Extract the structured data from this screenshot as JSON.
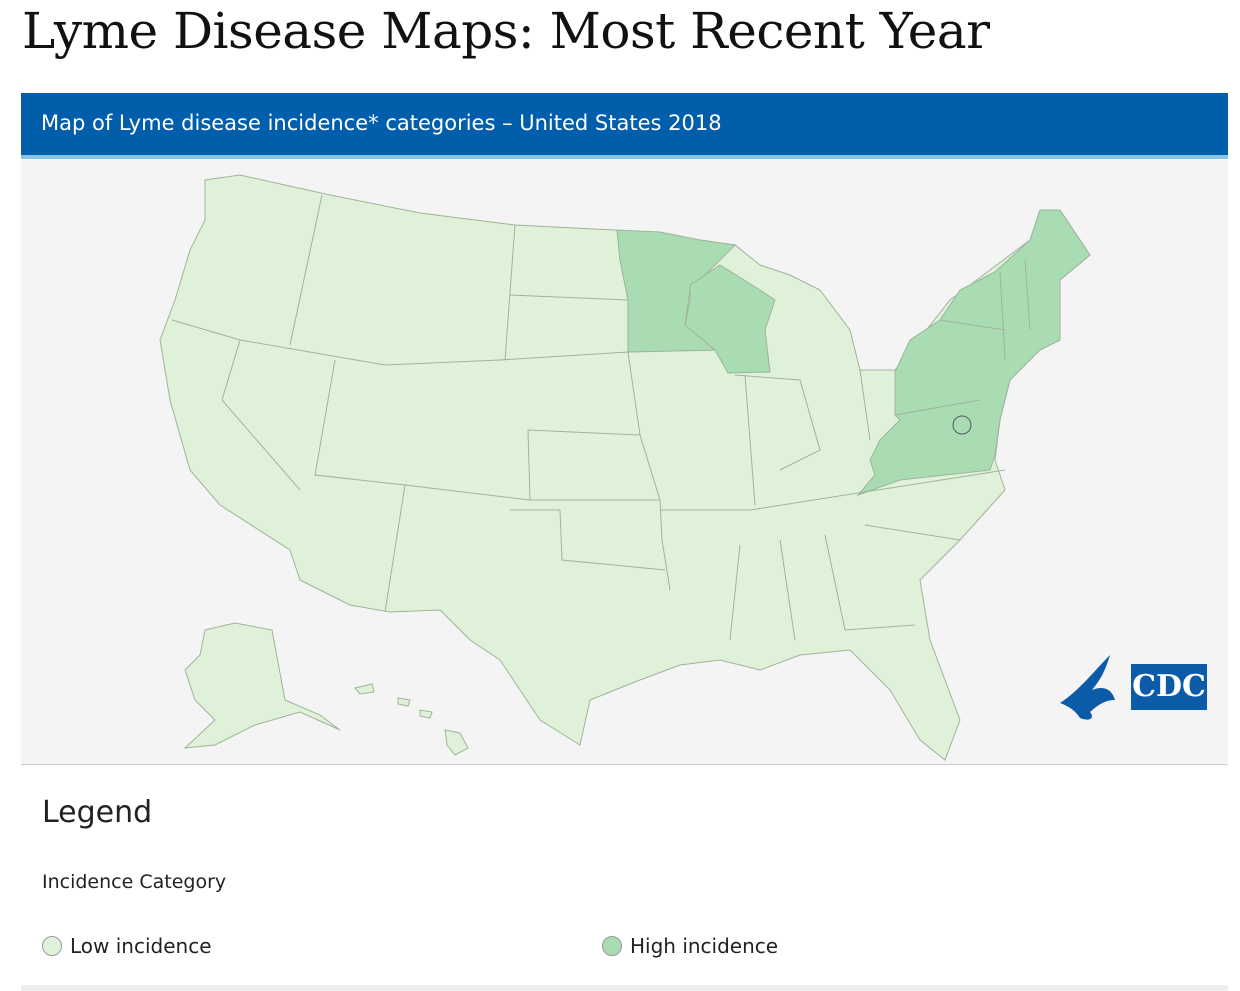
{
  "page_title": "Lyme Disease Maps: Most Recent Year",
  "panel": {
    "title": "Map of Lyme disease incidence* categories – United States 2018"
  },
  "logo": {
    "text": "CDC"
  },
  "legend": {
    "title": "Legend",
    "subtitle": "Incidence Category",
    "items": [
      {
        "label": "Low incidence",
        "color": "#dff2d9"
      },
      {
        "label": "High incidence",
        "color": "#a9dcb2"
      }
    ]
  }
}
